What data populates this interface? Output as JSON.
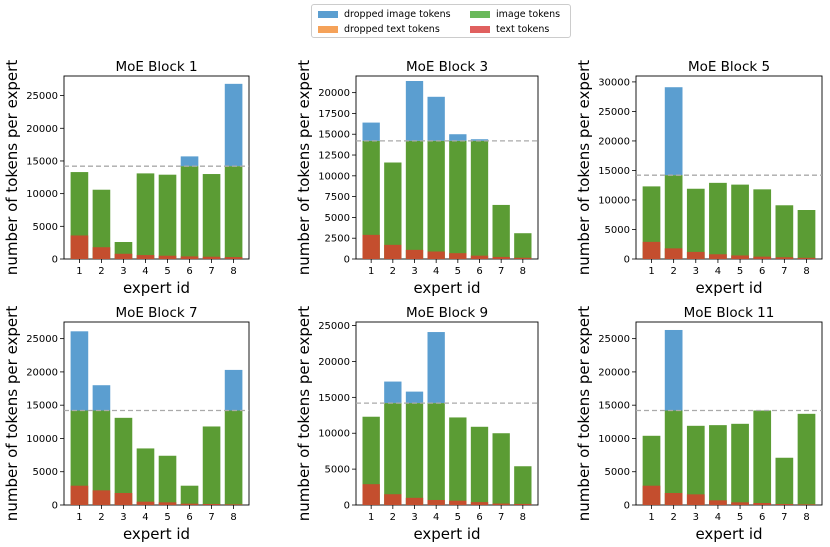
{
  "legend": {
    "items": [
      {
        "label": "dropped image tokens",
        "color": "#5b9ed0"
      },
      {
        "label": "dropped text tokens",
        "color": "#f5a259"
      },
      {
        "label": "image tokens",
        "color": "#6ab95b"
      },
      {
        "label": "text tokens",
        "color": "#e0605f"
      }
    ]
  },
  "colors": {
    "image": "#6ab95b",
    "text": "#e0605f",
    "dropped_image": "#5b9ed0",
    "dropped_text": "#f5a259",
    "image_over_text": "#5b9c34",
    "text_under": "#c44e2e",
    "capacity_line": "#aaaaaa"
  },
  "chart_data": [
    {
      "type": "bar",
      "title": "MoE Block 1",
      "xlabel": "expert id",
      "ylabel": "number of tokens per expert",
      "categories": [
        "1",
        "2",
        "3",
        "4",
        "5",
        "6",
        "7",
        "8"
      ],
      "ylim": [
        0,
        28000
      ],
      "yticks": [
        0,
        5000,
        10000,
        15000,
        20000,
        25000
      ],
      "capacity": 14200,
      "series": [
        {
          "name": "total tokens",
          "values": [
            13300,
            10600,
            2600,
            13100,
            12900,
            15700,
            13000,
            26800
          ]
        },
        {
          "name": "text tokens",
          "values": [
            3600,
            1800,
            800,
            600,
            500,
            400,
            350,
            300
          ]
        }
      ]
    },
    {
      "type": "bar",
      "title": "MoE Block 3",
      "xlabel": "expert id",
      "ylabel": "number of tokens per expert",
      "categories": [
        "1",
        "2",
        "3",
        "4",
        "5",
        "6",
        "7",
        "8"
      ],
      "ylim": [
        0,
        22000
      ],
      "yticks": [
        0,
        2500,
        5000,
        7500,
        10000,
        12500,
        15000,
        17500,
        20000
      ],
      "capacity": 14200,
      "series": [
        {
          "name": "total tokens",
          "values": [
            16400,
            11600,
            21400,
            19500,
            15000,
            14400,
            6500,
            3100
          ]
        },
        {
          "name": "text tokens",
          "values": [
            2900,
            1700,
            1100,
            900,
            700,
            400,
            250,
            150
          ]
        }
      ]
    },
    {
      "type": "bar",
      "title": "MoE Block 5",
      "xlabel": "expert id",
      "ylabel": "number of tokens per expert",
      "categories": [
        "1",
        "2",
        "3",
        "4",
        "5",
        "6",
        "7",
        "8"
      ],
      "ylim": [
        0,
        31000
      ],
      "yticks": [
        0,
        5000,
        10000,
        15000,
        20000,
        25000,
        30000
      ],
      "capacity": 14200,
      "series": [
        {
          "name": "total tokens",
          "values": [
            12300,
            29100,
            11900,
            12900,
            12600,
            11800,
            9100,
            8300
          ]
        },
        {
          "name": "text tokens",
          "values": [
            2900,
            1800,
            1200,
            800,
            600,
            400,
            300,
            200
          ]
        }
      ]
    },
    {
      "type": "bar",
      "title": "MoE Block 7",
      "xlabel": "expert id",
      "ylabel": "number of tokens per expert",
      "categories": [
        "1",
        "2",
        "3",
        "4",
        "5",
        "6",
        "7",
        "8"
      ],
      "ylim": [
        0,
        27500
      ],
      "yticks": [
        0,
        5000,
        10000,
        15000,
        20000,
        25000
      ],
      "capacity": 14200,
      "series": [
        {
          "name": "total tokens",
          "values": [
            26100,
            18000,
            13100,
            8500,
            7400,
            2900,
            11800,
            20300
          ]
        },
        {
          "name": "text tokens",
          "values": [
            2900,
            2200,
            1800,
            500,
            400,
            200,
            150,
            100
          ]
        }
      ]
    },
    {
      "type": "bar",
      "title": "MoE Block 9",
      "xlabel": "expert id",
      "ylabel": "number of tokens per expert",
      "categories": [
        "1",
        "2",
        "3",
        "4",
        "5",
        "6",
        "7",
        "8"
      ],
      "ylim": [
        0,
        25500
      ],
      "yticks": [
        0,
        5000,
        10000,
        15000,
        20000,
        25000
      ],
      "capacity": 14200,
      "series": [
        {
          "name": "total tokens",
          "values": [
            12300,
            17200,
            15800,
            24100,
            12200,
            10900,
            10000,
            5400
          ]
        },
        {
          "name": "text tokens",
          "values": [
            2900,
            1500,
            1000,
            700,
            600,
            400,
            200,
            150
          ]
        }
      ]
    },
    {
      "type": "bar",
      "title": "MoE Block 11",
      "xlabel": "expert id",
      "ylabel": "number of tokens per expert",
      "categories": [
        "1",
        "2",
        "3",
        "4",
        "5",
        "6",
        "7",
        "8"
      ],
      "ylim": [
        0,
        27500
      ],
      "yticks": [
        0,
        5000,
        10000,
        15000,
        20000,
        25000
      ],
      "capacity": 14200,
      "series": [
        {
          "name": "total tokens",
          "values": [
            10400,
            26300,
            11900,
            12000,
            12200,
            14200,
            7100,
            13700
          ]
        },
        {
          "name": "text tokens",
          "values": [
            2900,
            1800,
            1600,
            700,
            400,
            300,
            150,
            100
          ]
        }
      ]
    }
  ]
}
